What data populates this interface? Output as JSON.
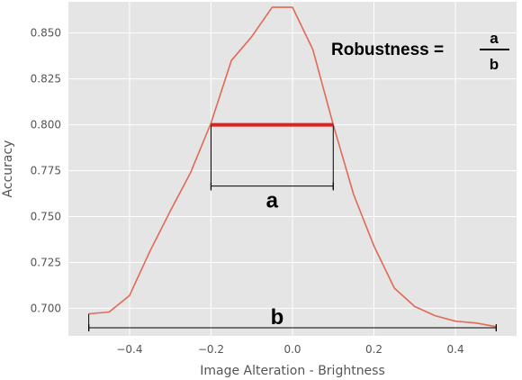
{
  "chart_data": {
    "type": "line",
    "title": "",
    "xlabel": "Image Alteration - Brightness",
    "ylabel": "Accuracy",
    "xlim": [
      -0.55,
      0.55
    ],
    "ylim": [
      0.685,
      0.867
    ],
    "x_ticks": [
      -0.4,
      -0.2,
      0.0,
      0.2,
      0.4
    ],
    "x_tick_labels": [
      "−0.4",
      "−0.2",
      "0.0",
      "0.2",
      "0.4"
    ],
    "y_ticks": [
      0.7,
      0.725,
      0.75,
      0.775,
      0.8,
      0.825,
      0.85
    ],
    "y_tick_labels": [
      "0.700",
      "0.725",
      "0.750",
      "0.775",
      "0.800",
      "0.825",
      "0.850"
    ],
    "grid": true,
    "background_color": "#e5e5e5",
    "series_color": "#e06a55",
    "series": [
      {
        "x": [
          -0.5,
          -0.45,
          -0.4,
          -0.35,
          -0.3,
          -0.25,
          -0.2,
          -0.15,
          -0.1,
          -0.05,
          0.0,
          0.05,
          0.1,
          0.15,
          0.2,
          0.25,
          0.3,
          0.35,
          0.4,
          0.45,
          0.5
        ],
        "y": [
          0.697,
          0.698,
          0.707,
          0.731,
          0.753,
          0.774,
          0.801,
          0.835,
          0.848,
          0.864,
          0.864,
          0.841,
          0.8,
          0.762,
          0.734,
          0.711,
          0.701,
          0.696,
          0.693,
          0.692,
          0.69
        ]
      }
    ],
    "annotations": {
      "formula_lhs": "Robustness =",
      "formula_numerator": "a",
      "formula_denominator": "b",
      "a_label": "a",
      "b_label": "b",
      "a_range": [
        -0.2,
        0.1
      ],
      "a_level": 0.8,
      "b_range": [
        -0.5,
        0.5
      ],
      "highlight_color": "#dd2222"
    }
  }
}
